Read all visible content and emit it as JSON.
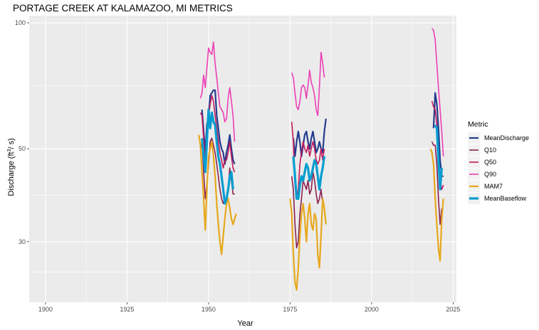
{
  "chart_data": {
    "type": "line",
    "title": "PORTAGE CREEK AT KALAMAZOO, MI  METRICS",
    "xlabel": "Year",
    "ylabel_main": "Discharge (ft",
    "ylabel_sup": "3",
    "ylabel_tail": "/ s)",
    "ylog": true,
    "xlim": [
      1895,
      2026
    ],
    "ylim": [
      21.5,
      104
    ],
    "x_ticks": [
      "1900",
      "1925",
      "1950",
      "1975",
      "2000",
      "2025"
    ],
    "x_tick_values": [
      1900,
      1925,
      1950,
      1975,
      2000,
      2025
    ],
    "y_ticks": [
      "30",
      "50",
      "100"
    ],
    "y_tick_values": [
      30,
      50,
      100
    ],
    "grid": true,
    "legend": {
      "title": "Metric",
      "position": "right"
    },
    "series": [
      {
        "name": "MeanDischarge",
        "color": "#243c8c",
        "width": 2.2,
        "segments": [
          {
            "x": [
              1948,
              1948.5,
              1949,
              1949.5,
              1950,
              1950.5,
              1951,
              1951.5,
              1952,
              1952.5,
              1953,
              1953.5,
              1954,
              1954.5,
              1955,
              1955.5,
              1956,
              1956.5,
              1957,
              1957.5,
              1958
            ],
            "y": [
              62,
              55,
              49,
              57,
              60,
              67,
              68,
              69,
              69,
              60,
              56,
              52,
              50,
              49,
              46,
              49,
              51,
              54,
              50,
              47,
              46
            ]
          },
          {
            "x": [
              1976,
              1976.5,
              1977,
              1977.5,
              1978,
              1978.5,
              1979,
              1979.5,
              1980,
              1980.5,
              1981,
              1981.5,
              1982,
              1982.5,
              1983,
              1983.5,
              1984,
              1984.5,
              1985,
              1985.5,
              1986
            ],
            "y": [
              53,
              48,
              52,
              55,
              52,
              48,
              51,
              54,
              55,
              52,
              50,
              53,
              55,
              52,
              49,
              50,
              52,
              50,
              49,
              55,
              59
            ]
          },
          {
            "x": [
              2019,
              2019.5,
              2020,
              2020.5,
              2021,
              2021.5,
              2022
            ],
            "y": [
              56,
              68,
              64,
              56,
              47,
              43,
              43
            ]
          }
        ]
      },
      {
        "name": "Q10",
        "color": "#8b2252",
        "width": 1.6,
        "segments": [
          {
            "x": [
              1947.5,
              1948,
              1948.5,
              1949,
              1949.5,
              1950,
              1950.5,
              1951,
              1951.5,
              1952,
              1952.5,
              1953,
              1953.5,
              1954,
              1954.5,
              1955,
              1955.5,
              1956,
              1956.5,
              1957,
              1957.5,
              1958
            ],
            "y": [
              49,
              52,
              44,
              38,
              41,
              46,
              52,
              53,
              51,
              49,
              46,
              43,
              40,
              38,
              37,
              38,
              37,
              40,
              45,
              42,
              39,
              39
            ]
          },
          {
            "x": [
              1975.5,
              1976,
              1976.5,
              1977,
              1977.5,
              1978,
              1978.5,
              1979,
              1979.5,
              1980,
              1980.5,
              1981,
              1981.5,
              1982,
              1982.5,
              1983,
              1983.5,
              1984,
              1984.5,
              1985,
              1985.5
            ],
            "y": [
              43,
              40,
              33,
              29,
              30,
              35,
              38,
              42,
              41,
              40,
              42,
              39,
              40,
              44,
              42,
              39,
              37,
              38,
              40,
              37,
              37
            ]
          },
          {
            "x": [
              2018.5,
              2019,
              2019.5,
              2020,
              2020.5,
              2021,
              2021.5
            ],
            "y": [
              52,
              51,
              51,
              46,
              38,
              33,
              36
            ]
          }
        ]
      },
      {
        "name": "Q50",
        "color": "#c2185b",
        "width": 1.6,
        "segments": [
          {
            "x": [
              1947.5,
              1948,
              1948.5,
              1949,
              1949.5,
              1950,
              1950.5,
              1951,
              1951.5,
              1952,
              1952.5,
              1953,
              1953.5,
              1954,
              1954.5,
              1955,
              1955.5,
              1956,
              1956.5,
              1957,
              1957.5,
              1958
            ],
            "y": [
              61,
              60,
              53,
              45,
              52,
              60,
              64,
              67,
              65,
              60,
              56,
              52,
              49,
              47,
              45,
              47,
              47,
              49,
              52,
              48,
              45,
              44
            ]
          },
          {
            "x": [
              1975.5,
              1976,
              1976.5,
              1977,
              1977.5,
              1978,
              1978.5,
              1979,
              1979.5,
              1980,
              1980.5,
              1981,
              1981.5,
              1982,
              1982.5,
              1983,
              1983.5,
              1984,
              1984.5,
              1985,
              1985.5
            ],
            "y": [
              58,
              52,
              41,
              38,
              40,
              46,
              49,
              52,
              50,
              49,
              51,
              48,
              50,
              52,
              50,
              47,
              46,
              47,
              50,
              47,
              50
            ]
          },
          {
            "x": [
              2018.5,
              2019,
              2019.5,
              2020,
              2020.5,
              2021,
              2021.5,
              2022
            ],
            "y": [
              65,
              63,
              62,
              57,
              48,
              42,
              40,
              41
            ]
          }
        ]
      },
      {
        "name": "Q90",
        "color": "#ec3fb5",
        "width": 1.6,
        "segments": [
          {
            "x": [
              1947.5,
              1948,
              1948.5,
              1949,
              1949.5,
              1950,
              1950.5,
              1951,
              1951.5,
              1952,
              1952.5,
              1953,
              1953.5,
              1954,
              1954.5,
              1955,
              1955.5,
              1956,
              1956.5,
              1957,
              1957.5,
              1958
            ],
            "y": [
              66,
              68,
              75,
              70,
              78,
              87,
              85,
              84,
              90,
              80,
              74,
              68,
              63,
              62,
              61,
              58,
              59,
              66,
              70,
              65,
              60,
              52
            ]
          },
          {
            "x": [
              1975.5,
              1976,
              1976.5,
              1977,
              1977.5,
              1978,
              1978.5,
              1979,
              1979.5,
              1980,
              1980.5,
              1981,
              1981.5,
              1982,
              1982.5,
              1983,
              1983.5,
              1984,
              1984.5,
              1985,
              1985.5
            ],
            "y": [
              76,
              74,
              68,
              63,
              62,
              65,
              70,
              71,
              70,
              66,
              71,
              77,
              72,
              70,
              67,
              62,
              60,
              70,
              85,
              80,
              74
            ]
          },
          {
            "x": [
              2018.5,
              2019,
              2019.5,
              2020,
              2020.5,
              2021,
              2021.5,
              2022
            ],
            "y": [
              97,
              96,
              91,
              80,
              70,
              62,
              55,
              48
            ]
          }
        ]
      },
      {
        "name": "MAM7",
        "color": "#e7a81d",
        "width": 2.2,
        "segments": [
          {
            "x": [
              1947,
              1947.5,
              1948,
              1948.5,
              1949,
              1949.5,
              1950,
              1950.5,
              1951,
              1951.5,
              1952,
              1952.5,
              1953,
              1953.5,
              1954,
              1954.5,
              1955,
              1955.5,
              1956,
              1956.5,
              1957,
              1957.5,
              1958,
              1958.5
            ],
            "y": [
              54,
              51,
              44,
              38,
              32,
              40,
              48,
              50,
              52,
              48,
              43,
              37,
              33,
              30,
              28,
              31,
              34,
              37,
              38,
              36,
              34,
              33,
              34,
              35
            ]
          },
          {
            "x": [
              1975,
              1975.5,
              1976,
              1976.5,
              1977,
              1977.5,
              1978,
              1978.5,
              1979,
              1979.5,
              1980,
              1980.5,
              1981,
              1981.5,
              1982,
              1982.5,
              1983,
              1983.5,
              1984,
              1984.5,
              1985,
              1985.5,
              1986
            ],
            "y": [
              38,
              35,
              28,
              24,
              23,
              26,
              31,
              35,
              37,
              34,
              30,
              35,
              37,
              33,
              32,
              35,
              34,
              28,
              26,
              31,
              38,
              36,
              33
            ]
          },
          {
            "x": [
              2018,
              2018.5,
              2019,
              2019.5,
              2020,
              2020.5,
              2021,
              2021.5,
              2022
            ],
            "y": [
              50,
              49,
              46,
              38,
              33,
              29,
              27,
              34,
              38
            ]
          }
        ]
      },
      {
        "name": "MeanBaseflow",
        "color": "#069dd0",
        "width": 3.2,
        "segments": [
          {
            "x": [
              1948,
              1948.5,
              1949,
              1949.5,
              1950,
              1950.5,
              1951,
              1951.5,
              1952,
              1952.5,
              1953,
              1953.5,
              1954,
              1954.5,
              1955,
              1955.5,
              1956,
              1956.5,
              1957,
              1957.5
            ],
            "y": [
              53,
              48,
              44,
              52,
              62,
              56,
              61,
              58,
              57,
              52,
              48,
              46,
              43,
              40,
              37,
              38,
              40,
              43,
              44,
              40
            ]
          },
          {
            "x": [
              1976,
              1976.5,
              1977,
              1977.5,
              1978,
              1978.5,
              1979,
              1979.5,
              1980,
              1980.5,
              1981,
              1981.5,
              1982,
              1982.5,
              1983,
              1983.5,
              1984,
              1984.5,
              1985,
              1985.5
            ],
            "y": [
              48,
              43,
              38,
              38,
              41,
              43,
              42,
              44,
              46,
              45,
              42,
              43,
              45,
              47,
              46,
              43,
              40,
              43,
              45,
              48
            ]
          },
          {
            "x": [
              2019.5,
              2020,
              2020.5,
              2021,
              2021.5
            ],
            "y": [
              57,
              56,
              47,
              40,
              45
            ]
          }
        ]
      }
    ]
  }
}
